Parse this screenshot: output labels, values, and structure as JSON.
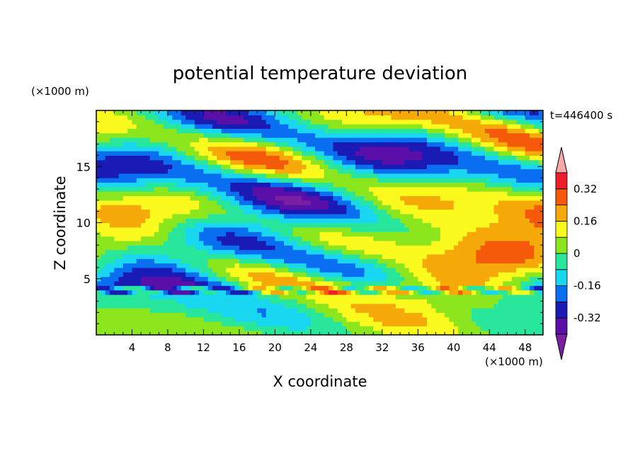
{
  "chart_data": {
    "type": "heatmap",
    "title": "potential temperature deviation",
    "xlabel": "X coordinate",
    "ylabel": "Z coordinate",
    "x_unit": "(×1000 m)",
    "y_unit": "(×1000 m)",
    "time_label": "t=446400 s",
    "xlim": [
      0,
      50
    ],
    "ylim": [
      0,
      20
    ],
    "x_ticks": [
      4,
      8,
      12,
      16,
      20,
      24,
      28,
      32,
      36,
      40,
      44,
      48
    ],
    "y_ticks": [
      5,
      10,
      15
    ],
    "colorbar": {
      "levels": [
        -0.4,
        -0.32,
        -0.24,
        -0.16,
        -0.08,
        0,
        0.08,
        0.16,
        0.24,
        0.32,
        0.4
      ],
      "labels": [
        "0.32",
        "0.16",
        "0",
        "-0.16",
        "-0.32"
      ],
      "label_values": [
        0.32,
        0.16,
        0,
        -0.16,
        -0.32
      ],
      "colors": [
        "#7a1fa2",
        "#5a0fa8",
        "#1a1ab4",
        "#0a6ef0",
        "#19d7f0",
        "#28e69b",
        "#8ce61e",
        "#fafa1e",
        "#f5aa0a",
        "#f55a0a",
        "#f01e2d",
        "#f5aaaa"
      ],
      "extend": "both"
    },
    "grid": false
  }
}
